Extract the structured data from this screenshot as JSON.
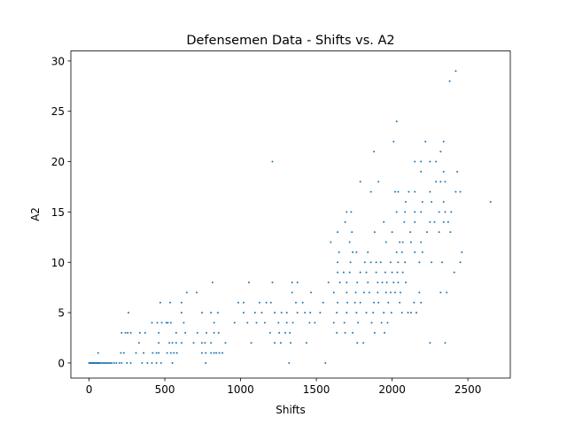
{
  "chart_data": {
    "type": "scatter",
    "title": "Defensemen Data - Shifts vs. A2",
    "xlabel": "Shifts",
    "ylabel": "A2",
    "xlim": [
      -120,
      2780
    ],
    "ylim": [
      -1.5,
      31
    ],
    "xticks": [
      0,
      500,
      1000,
      1500,
      2000,
      2500
    ],
    "xtick_labels": [
      "0",
      "500",
      "1000",
      "1500",
      "2000",
      "2500"
    ],
    "yticks": [
      0,
      5,
      10,
      15,
      20,
      25,
      30
    ],
    "ytick_labels": [
      "0",
      "5",
      "10",
      "15",
      "20",
      "25",
      "30"
    ],
    "grid": false,
    "marker_color": "#1f77b4",
    "series": [
      {
        "points": [
          [
            0,
            0
          ],
          [
            5,
            0
          ],
          [
            10,
            0
          ],
          [
            15,
            0
          ],
          [
            20,
            0
          ],
          [
            25,
            0
          ],
          [
            30,
            0
          ],
          [
            35,
            0
          ],
          [
            40,
            0
          ],
          [
            45,
            0
          ],
          [
            50,
            0
          ],
          [
            55,
            0
          ],
          [
            60,
            0
          ],
          [
            65,
            0
          ],
          [
            70,
            0
          ],
          [
            75,
            0
          ],
          [
            85,
            0
          ],
          [
            95,
            0
          ],
          [
            105,
            0
          ],
          [
            110,
            0
          ],
          [
            120,
            0
          ],
          [
            130,
            0
          ],
          [
            140,
            0
          ],
          [
            150,
            0
          ],
          [
            165,
            0
          ],
          [
            180,
            0
          ],
          [
            200,
            0
          ],
          [
            215,
            0
          ],
          [
            250,
            0
          ],
          [
            275,
            0
          ],
          [
            350,
            0
          ],
          [
            385,
            0
          ],
          [
            415,
            0
          ],
          [
            445,
            0
          ],
          [
            475,
            0
          ],
          [
            550,
            0
          ],
          [
            770,
            0
          ],
          [
            1320,
            0
          ],
          [
            1560,
            0
          ],
          [
            60,
            1
          ],
          [
            210,
            1
          ],
          [
            230,
            1
          ],
          [
            310,
            1
          ],
          [
            360,
            1
          ],
          [
            420,
            1
          ],
          [
            445,
            1
          ],
          [
            460,
            1
          ],
          [
            515,
            1
          ],
          [
            540,
            1
          ],
          [
            560,
            1
          ],
          [
            580,
            1
          ],
          [
            745,
            1
          ],
          [
            770,
            1
          ],
          [
            805,
            1
          ],
          [
            825,
            1
          ],
          [
            840,
            1
          ],
          [
            860,
            1
          ],
          [
            880,
            1
          ],
          [
            330,
            2
          ],
          [
            460,
            2
          ],
          [
            530,
            2
          ],
          [
            550,
            2
          ],
          [
            575,
            2
          ],
          [
            610,
            2
          ],
          [
            690,
            2
          ],
          [
            745,
            2
          ],
          [
            765,
            2
          ],
          [
            805,
            2
          ],
          [
            900,
            2
          ],
          [
            1070,
            2
          ],
          [
            1225,
            2
          ],
          [
            1265,
            2
          ],
          [
            1330,
            2
          ],
          [
            1435,
            2
          ],
          [
            1770,
            2
          ],
          [
            1810,
            2
          ],
          [
            2250,
            2
          ],
          [
            2350,
            2
          ],
          [
            215,
            3
          ],
          [
            240,
            3
          ],
          [
            255,
            3
          ],
          [
            275,
            3
          ],
          [
            335,
            3
          ],
          [
            370,
            3
          ],
          [
            460,
            3
          ],
          [
            575,
            3
          ],
          [
            635,
            3
          ],
          [
            715,
            3
          ],
          [
            775,
            3
          ],
          [
            825,
            3
          ],
          [
            855,
            3
          ],
          [
            1195,
            3
          ],
          [
            1255,
            3
          ],
          [
            1295,
            3
          ],
          [
            1325,
            3
          ],
          [
            1635,
            3
          ],
          [
            1690,
            3
          ],
          [
            1740,
            3
          ],
          [
            1885,
            3
          ],
          [
            1950,
            3
          ],
          [
            415,
            4
          ],
          [
            450,
            4
          ],
          [
            480,
            4
          ],
          [
            510,
            4
          ],
          [
            520,
            4
          ],
          [
            540,
            4
          ],
          [
            625,
            4
          ],
          [
            825,
            4
          ],
          [
            960,
            4
          ],
          [
            1045,
            4
          ],
          [
            1105,
            4
          ],
          [
            1160,
            4
          ],
          [
            1250,
            4
          ],
          [
            1305,
            4
          ],
          [
            1345,
            4
          ],
          [
            1455,
            4
          ],
          [
            1490,
            4
          ],
          [
            1615,
            4
          ],
          [
            1685,
            4
          ],
          [
            1775,
            4
          ],
          [
            1865,
            4
          ],
          [
            1930,
            4
          ],
          [
            1970,
            4
          ],
          [
            260,
            5
          ],
          [
            610,
            5
          ],
          [
            745,
            5
          ],
          [
            805,
            5
          ],
          [
            850,
            5
          ],
          [
            1020,
            5
          ],
          [
            1095,
            5
          ],
          [
            1140,
            5
          ],
          [
            1225,
            5
          ],
          [
            1270,
            5
          ],
          [
            1305,
            5
          ],
          [
            1375,
            5
          ],
          [
            1425,
            5
          ],
          [
            1460,
            5
          ],
          [
            1525,
            5
          ],
          [
            1635,
            5
          ],
          [
            1700,
            5
          ],
          [
            1765,
            5
          ],
          [
            1830,
            5
          ],
          [
            1875,
            5
          ],
          [
            1945,
            5
          ],
          [
            1995,
            5
          ],
          [
            2065,
            5
          ],
          [
            2105,
            5
          ],
          [
            2125,
            5
          ],
          [
            2160,
            5
          ],
          [
            470,
            6
          ],
          [
            535,
            6
          ],
          [
            610,
            6
          ],
          [
            985,
            6
          ],
          [
            1020,
            6
          ],
          [
            1125,
            6
          ],
          [
            1170,
            6
          ],
          [
            1200,
            6
          ],
          [
            1365,
            6
          ],
          [
            1410,
            6
          ],
          [
            1545,
            6
          ],
          [
            1640,
            6
          ],
          [
            1705,
            6
          ],
          [
            1755,
            6
          ],
          [
            1790,
            6
          ],
          [
            1880,
            6
          ],
          [
            1910,
            6
          ],
          [
            1975,
            6
          ],
          [
            2050,
            6
          ],
          [
            2145,
            6
          ],
          [
            2190,
            6
          ],
          [
            645,
            7
          ],
          [
            710,
            7
          ],
          [
            1340,
            7
          ],
          [
            1465,
            7
          ],
          [
            1615,
            7
          ],
          [
            1700,
            7
          ],
          [
            1760,
            7
          ],
          [
            1815,
            7
          ],
          [
            1850,
            7
          ],
          [
            1905,
            7
          ],
          [
            1960,
            7
          ],
          [
            1990,
            7
          ],
          [
            2020,
            7
          ],
          [
            2055,
            7
          ],
          [
            2180,
            7
          ],
          [
            2320,
            7
          ],
          [
            2360,
            7
          ],
          [
            815,
            8
          ],
          [
            1055,
            8
          ],
          [
            1210,
            8
          ],
          [
            1340,
            8
          ],
          [
            1375,
            8
          ],
          [
            1580,
            8
          ],
          [
            1655,
            8
          ],
          [
            1700,
            8
          ],
          [
            1770,
            8
          ],
          [
            1840,
            8
          ],
          [
            1905,
            8
          ],
          [
            1935,
            8
          ],
          [
            1965,
            8
          ],
          [
            2010,
            8
          ],
          [
            2040,
            8
          ],
          [
            2090,
            8
          ],
          [
            1640,
            9
          ],
          [
            1680,
            9
          ],
          [
            1720,
            9
          ],
          [
            1790,
            9
          ],
          [
            1830,
            9
          ],
          [
            1895,
            9
          ],
          [
            1955,
            9
          ],
          [
            2000,
            9
          ],
          [
            2035,
            9
          ],
          [
            2070,
            9
          ],
          [
            2410,
            9
          ],
          [
            1640,
            10
          ],
          [
            1725,
            10
          ],
          [
            1820,
            10
          ],
          [
            1860,
            10
          ],
          [
            1895,
            10
          ],
          [
            1925,
            10
          ],
          [
            1990,
            10
          ],
          [
            2040,
            10
          ],
          [
            2085,
            10
          ],
          [
            2180,
            10
          ],
          [
            2260,
            10
          ],
          [
            2330,
            10
          ],
          [
            2450,
            10
          ],
          [
            1650,
            11
          ],
          [
            1740,
            11
          ],
          [
            1765,
            11
          ],
          [
            1840,
            11
          ],
          [
            2030,
            11
          ],
          [
            2065,
            11
          ],
          [
            2150,
            11
          ],
          [
            2200,
            11
          ],
          [
            2460,
            11
          ],
          [
            1595,
            12
          ],
          [
            1720,
            12
          ],
          [
            1960,
            12
          ],
          [
            2050,
            12
          ],
          [
            2070,
            12
          ],
          [
            2125,
            12
          ],
          [
            2190,
            12
          ],
          [
            1640,
            13
          ],
          [
            1735,
            13
          ],
          [
            1885,
            13
          ],
          [
            2000,
            13
          ],
          [
            2120,
            13
          ],
          [
            2230,
            13
          ],
          [
            2310,
            13
          ],
          [
            2385,
            13
          ],
          [
            1690,
            14
          ],
          [
            1945,
            14
          ],
          [
            2080,
            14
          ],
          [
            2150,
            14
          ],
          [
            2250,
            14
          ],
          [
            2280,
            14
          ],
          [
            2340,
            14
          ],
          [
            2370,
            14
          ],
          [
            1700,
            15
          ],
          [
            1730,
            15
          ],
          [
            2030,
            15
          ],
          [
            2085,
            15
          ],
          [
            2150,
            15
          ],
          [
            2190,
            15
          ],
          [
            2310,
            15
          ],
          [
            2350,
            15
          ],
          [
            2390,
            15
          ],
          [
            2090,
            16
          ],
          [
            2200,
            16
          ],
          [
            2260,
            16
          ],
          [
            2340,
            16
          ],
          [
            2650,
            16
          ],
          [
            1860,
            17
          ],
          [
            2020,
            17
          ],
          [
            2040,
            17
          ],
          [
            2110,
            17
          ],
          [
            2150,
            17
          ],
          [
            2250,
            17
          ],
          [
            2420,
            17
          ],
          [
            2450,
            17
          ],
          [
            1790,
            18
          ],
          [
            1910,
            18
          ],
          [
            2290,
            18
          ],
          [
            2320,
            18
          ],
          [
            2350,
            18
          ],
          [
            2190,
            19
          ],
          [
            2340,
            19
          ],
          [
            2430,
            19
          ],
          [
            1210,
            20
          ],
          [
            2150,
            20
          ],
          [
            2190,
            20
          ],
          [
            2250,
            20
          ],
          [
            2290,
            20
          ],
          [
            1880,
            21
          ],
          [
            2320,
            21
          ],
          [
            2010,
            22
          ],
          [
            2220,
            22
          ],
          [
            2340,
            22
          ],
          [
            2030,
            24
          ],
          [
            2380,
            28
          ],
          [
            2420,
            29
          ]
        ]
      }
    ]
  }
}
